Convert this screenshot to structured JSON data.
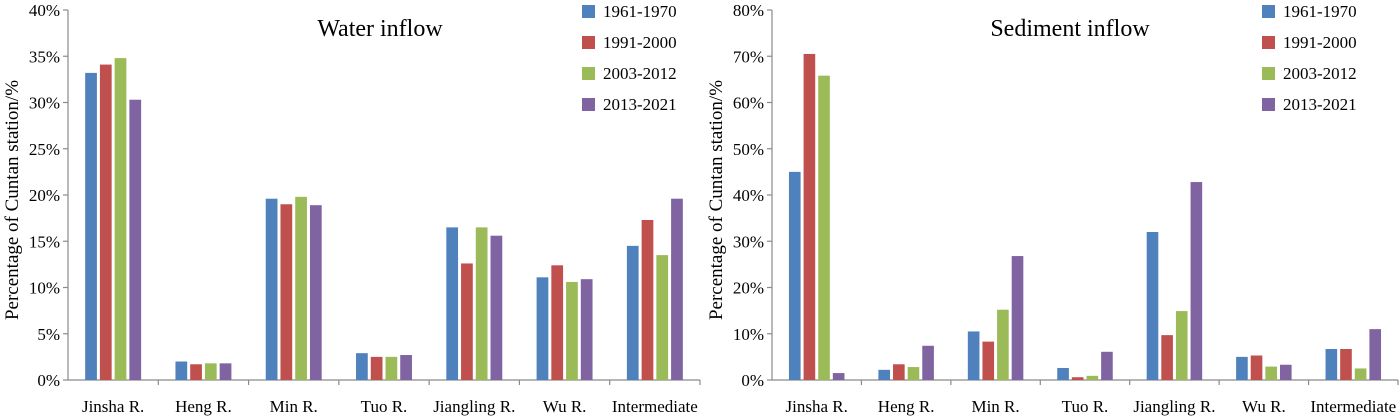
{
  "chart_data": [
    {
      "type": "bar",
      "title": "Water inflow",
      "xlabel": "",
      "ylabel": "Percentage of Cuntan station/%",
      "categories": [
        "Jinsha R.",
        "Heng R.",
        "Min R.",
        "Tuo R.",
        "Jiangling R.",
        "Wu R.",
        "Intermediate"
      ],
      "ylim": [
        0,
        40
      ],
      "ytick_step": 5,
      "ytick_labels": [
        "0%",
        "5%",
        "10%",
        "15%",
        "20%",
        "25%",
        "30%",
        "35%",
        "40%"
      ],
      "grid": false,
      "legend_position": "top-right",
      "series": [
        {
          "name": "1961-1970",
          "color": "#4F81BD",
          "values": [
            33.2,
            2.0,
            19.6,
            2.9,
            16.5,
            11.1,
            14.5
          ]
        },
        {
          "name": "1991-2000",
          "color": "#C0504D",
          "values": [
            34.1,
            1.7,
            19.0,
            2.5,
            12.6,
            12.4,
            17.3
          ]
        },
        {
          "name": "2003-2012",
          "color": "#9BBB59",
          "values": [
            34.8,
            1.8,
            19.8,
            2.5,
            16.5,
            10.6,
            13.5
          ]
        },
        {
          "name": "2013-2021",
          "color": "#8064A2",
          "values": [
            30.3,
            1.8,
            18.9,
            2.7,
            15.6,
            10.9,
            19.6
          ]
        }
      ]
    },
    {
      "type": "bar",
      "title": "Sediment inflow",
      "xlabel": "",
      "ylabel": "Percentage of Cuntan station/%",
      "categories": [
        "Jinsha R.",
        "Heng R.",
        "Min R.",
        "Tuo R.",
        "Jiangling R.",
        "Wu R.",
        "Intermediate"
      ],
      "ylim": [
        0,
        80
      ],
      "ytick_step": 10,
      "ytick_labels": [
        "0%",
        "10%",
        "20%",
        "30%",
        "40%",
        "50%",
        "60%",
        "70%",
        "80%"
      ],
      "grid": false,
      "legend_position": "top-right",
      "series": [
        {
          "name": "1961-1970",
          "color": "#4F81BD",
          "values": [
            45.0,
            2.2,
            10.5,
            2.6,
            32.0,
            5.0,
            6.7
          ]
        },
        {
          "name": "1991-2000",
          "color": "#C0504D",
          "values": [
            70.5,
            3.4,
            8.3,
            0.6,
            9.7,
            5.3,
            6.7
          ]
        },
        {
          "name": "2003-2012",
          "color": "#9BBB59",
          "values": [
            65.8,
            2.8,
            15.2,
            0.9,
            14.9,
            2.9,
            2.5
          ]
        },
        {
          "name": "2013-2021",
          "color": "#8064A2",
          "values": [
            1.5,
            7.4,
            26.8,
            6.1,
            42.8,
            3.3,
            11.0
          ]
        }
      ]
    }
  ]
}
